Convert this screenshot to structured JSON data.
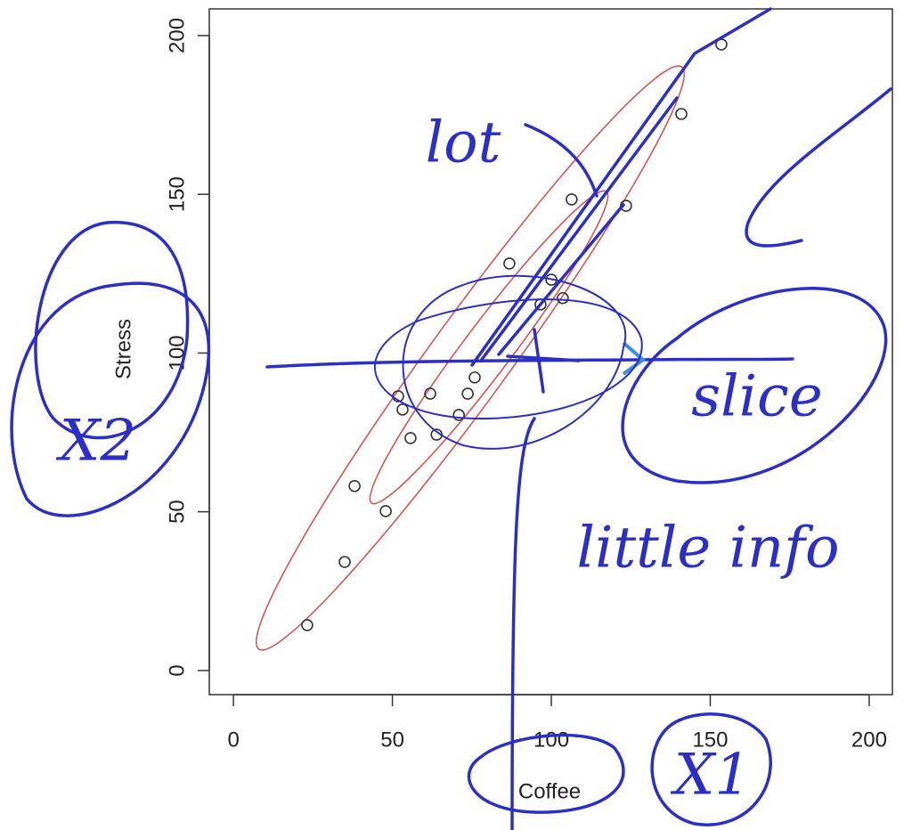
{
  "chart_data": {
    "type": "scatter",
    "xlabel": "Coffee",
    "ylabel": "Stress",
    "x": [
      23.2,
      35,
      38.1,
      47.9,
      51.8,
      53.2,
      55.7,
      61.9,
      63.9,
      70.9,
      73.7,
      75.9,
      86.8,
      96.6,
      100,
      103.6,
      106.4,
      123.5,
      140.9,
      153.5
    ],
    "y": [
      14.3,
      34.2,
      58.1,
      50.2,
      86.4,
      82.2,
      73.2,
      87.2,
      74.3,
      80.5,
      87.2,
      92.3,
      128.2,
      115.3,
      123.1,
      117.3,
      148.4,
      146.4,
      175.3,
      197.2
    ],
    "color": "#333333",
    "xlim": [
      -7.6,
      207.3
    ],
    "ylim": [
      -7.6,
      208.4
    ],
    "xticks": [
      0,
      50,
      100,
      150,
      200
    ],
    "yticks": [
      0,
      50,
      100,
      150,
      200
    ],
    "annotations": [
      "lot",
      "slice",
      "little info",
      "X2",
      "X1"
    ]
  }
}
